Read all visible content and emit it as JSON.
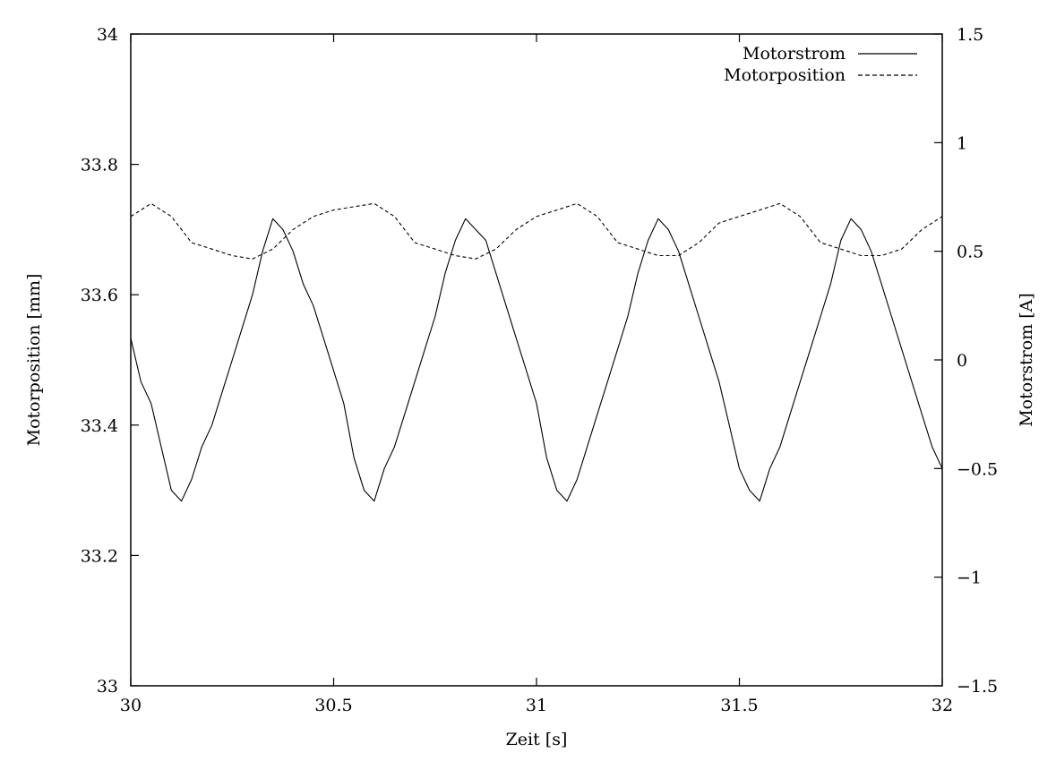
{
  "chart_data": {
    "type": "line",
    "title": "",
    "xlabel": "Zeit [s]",
    "ylabel": "Motorposition [mm]",
    "y2label": "Motorstrom [A]",
    "xlim": [
      30,
      32
    ],
    "ylim": [
      33,
      34
    ],
    "y2lim": [
      -1.5,
      1.5
    ],
    "x_ticks": [
      "30",
      "30.5",
      "31",
      "31.5",
      "32"
    ],
    "y_ticks": [
      "33",
      "33.2",
      "33.4",
      "33.6",
      "33.8",
      "34"
    ],
    "y2_ticks": [
      "−1.5",
      "−1",
      "−0.5",
      "0",
      "0.5",
      "1",
      "1.5"
    ],
    "legend_position": "top-right",
    "grid": false,
    "series": [
      {
        "name": "Motorstrom",
        "axis": "right",
        "style": "solid",
        "color": "#000000",
        "x": [
          30.0,
          30.025,
          30.05,
          30.075,
          30.1,
          30.125,
          30.15,
          30.175,
          30.2,
          30.225,
          30.25,
          30.275,
          30.3,
          30.325,
          30.35,
          30.375,
          30.4,
          30.425,
          30.45,
          30.475,
          30.5,
          30.525,
          30.55,
          30.575,
          30.6,
          30.625,
          30.65,
          30.675,
          30.7,
          30.725,
          30.75,
          30.775,
          30.8,
          30.825,
          30.85,
          30.875,
          30.9,
          30.925,
          30.95,
          30.975,
          31.0,
          31.025,
          31.05,
          31.075,
          31.1,
          31.125,
          31.15,
          31.175,
          31.2,
          31.225,
          31.25,
          31.275,
          31.3,
          31.325,
          31.35,
          31.375,
          31.4,
          31.425,
          31.45,
          31.475,
          31.5,
          31.525,
          31.55,
          31.575,
          31.6,
          31.625,
          31.65,
          31.675,
          31.7,
          31.725,
          31.75,
          31.775,
          31.8,
          31.825,
          31.85,
          31.875,
          31.9,
          31.925,
          31.95,
          31.975,
          32.0
        ],
        "y": [
          0.1,
          -0.1,
          -0.2,
          -0.4,
          -0.6,
          -0.65,
          -0.55,
          -0.4,
          -0.3,
          -0.15,
          0.0,
          0.15,
          0.3,
          0.5,
          0.65,
          0.6,
          0.5,
          0.35,
          0.25,
          0.1,
          -0.05,
          -0.2,
          -0.45,
          -0.6,
          -0.65,
          -0.5,
          -0.4,
          -0.25,
          -0.1,
          0.05,
          0.2,
          0.4,
          0.55,
          0.65,
          0.6,
          0.55,
          0.4,
          0.25,
          0.1,
          -0.05,
          -0.2,
          -0.45,
          -0.6,
          -0.65,
          -0.55,
          -0.4,
          -0.25,
          -0.1,
          0.05,
          0.2,
          0.4,
          0.55,
          0.65,
          0.6,
          0.5,
          0.35,
          0.2,
          0.05,
          -0.1,
          -0.3,
          -0.5,
          -0.6,
          -0.65,
          -0.5,
          -0.4,
          -0.25,
          -0.1,
          0.05,
          0.2,
          0.35,
          0.55,
          0.65,
          0.6,
          0.5,
          0.35,
          0.2,
          0.05,
          -0.1,
          -0.25,
          -0.4,
          -0.5
        ]
      },
      {
        "name": "Motorposition",
        "axis": "left",
        "style": "dashed",
        "color": "#000000",
        "x": [
          30.0,
          30.05,
          30.1,
          30.15,
          30.2,
          30.25,
          30.3,
          30.35,
          30.4,
          30.45,
          30.5,
          30.55,
          30.6,
          30.65,
          30.7,
          30.75,
          30.8,
          30.85,
          30.9,
          30.95,
          31.0,
          31.05,
          31.1,
          31.15,
          31.2,
          31.25,
          31.3,
          31.35,
          31.4,
          31.45,
          31.5,
          31.55,
          31.6,
          31.65,
          31.7,
          31.75,
          31.8,
          31.85,
          31.9,
          31.95,
          32.0
        ],
        "y": [
          33.72,
          33.74,
          33.72,
          33.68,
          33.67,
          33.66,
          33.655,
          33.67,
          33.7,
          33.72,
          33.73,
          33.735,
          33.74,
          33.72,
          33.68,
          33.67,
          33.66,
          33.655,
          33.67,
          33.7,
          33.72,
          33.73,
          33.74,
          33.72,
          33.68,
          33.67,
          33.66,
          33.66,
          33.68,
          33.71,
          33.72,
          33.73,
          33.74,
          33.72,
          33.68,
          33.67,
          33.66,
          33.66,
          33.67,
          33.7,
          33.72
        ]
      }
    ]
  }
}
